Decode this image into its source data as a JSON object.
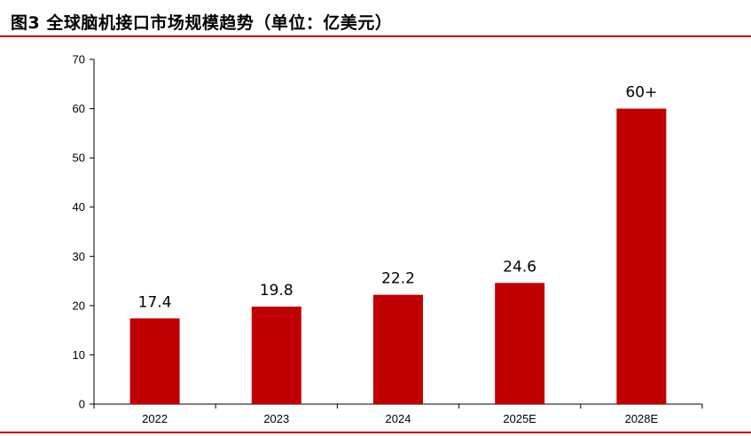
{
  "title": "图3 全球脑机接口市场规模趋势（单位：亿美元）",
  "colors": {
    "bar": "#C00000",
    "rule": "#C00000",
    "axis": "#000000"
  },
  "chart_data": {
    "type": "bar",
    "title": "图3 全球脑机接口市场规模趋势（单位：亿美元）",
    "categories": [
      "2022",
      "2023",
      "2024",
      "2025E",
      "2028E"
    ],
    "values": [
      17.4,
      19.8,
      22.2,
      24.6,
      60
    ],
    "data_labels": [
      "17.4",
      "19.8",
      "22.2",
      "24.6",
      "60+"
    ],
    "ylim": [
      0,
      70
    ],
    "yticks": [
      0,
      10,
      20,
      30,
      40,
      50,
      60,
      70
    ],
    "xlabel": "",
    "ylabel": "",
    "grid": false,
    "legend": "none"
  }
}
